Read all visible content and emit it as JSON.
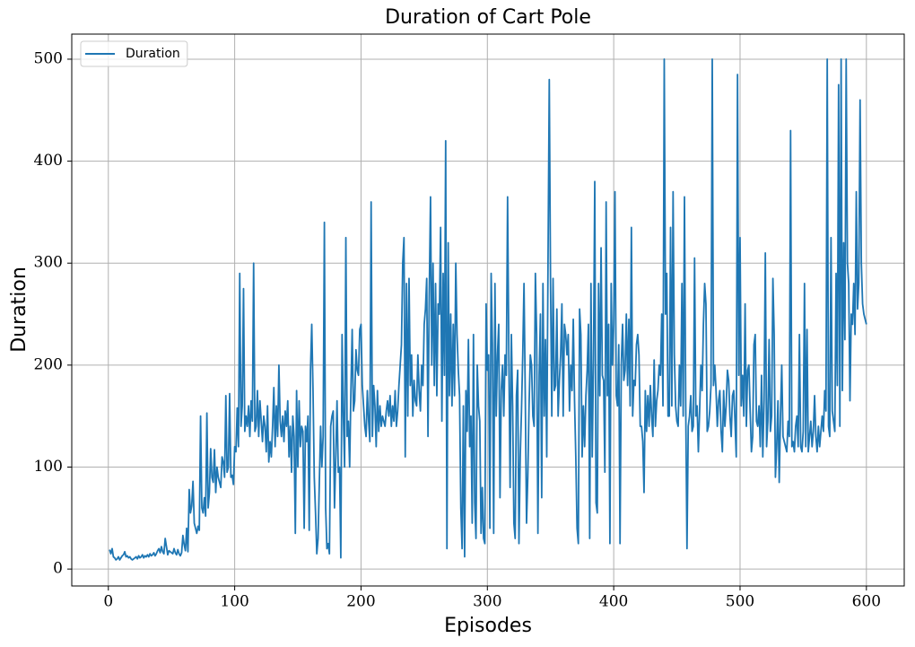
{
  "chart_data": {
    "type": "line",
    "title": "Duration of Cart Pole",
    "x_label": "Episodes",
    "y_label": "Duration",
    "xlim": [
      -28.95,
      629.95
    ],
    "ylim": [
      -16.6,
      524.6
    ],
    "xticks": [
      0,
      100,
      200,
      300,
      400,
      500,
      600
    ],
    "yticks": [
      0,
      100,
      200,
      300,
      400,
      500
    ],
    "grid": true,
    "legend": "upper left",
    "x": [
      1,
      2,
      3,
      4,
      5,
      6,
      7,
      8,
      9,
      10,
      11,
      12,
      13,
      14,
      15,
      16,
      17,
      18,
      19,
      20,
      21,
      22,
      23,
      24,
      25,
      26,
      27,
      28,
      29,
      30,
      31,
      32,
      33,
      34,
      35,
      36,
      37,
      38,
      39,
      40,
      41,
      42,
      43,
      44,
      45,
      46,
      47,
      48,
      49,
      50,
      51,
      52,
      53,
      54,
      55,
      56,
      57,
      58,
      59,
      60,
      61,
      62,
      63,
      64,
      65,
      66,
      67,
      68,
      69,
      70,
      71,
      72,
      73,
      74,
      75,
      76,
      77,
      78,
      79,
      80,
      81,
      82,
      83,
      84,
      85,
      86,
      87,
      88,
      89,
      90,
      91,
      92,
      93,
      94,
      95,
      96,
      97,
      98,
      99,
      100,
      101,
      102,
      103,
      104,
      105,
      106,
      107,
      108,
      109,
      110,
      111,
      112,
      113,
      114,
      115,
      116,
      117,
      118,
      119,
      120,
      121,
      122,
      123,
      124,
      125,
      126,
      127,
      128,
      129,
      130,
      131,
      132,
      133,
      134,
      135,
      136,
      137,
      138,
      139,
      140,
      141,
      142,
      143,
      144,
      145,
      146,
      147,
      148,
      149,
      150,
      151,
      152,
      153,
      154,
      155,
      156,
      157,
      158,
      159,
      160,
      161,
      162,
      163,
      164,
      165,
      166,
      167,
      168,
      169,
      170,
      171,
      172,
      173,
      174,
      175,
      176,
      177,
      178,
      179,
      180,
      181,
      182,
      183,
      184,
      185,
      186,
      187,
      188,
      189,
      190,
      191,
      192,
      193,
      194,
      195,
      196,
      197,
      198,
      199,
      200,
      201,
      202,
      203,
      204,
      205,
      206,
      207,
      208,
      209,
      210,
      211,
      212,
      213,
      214,
      215,
      216,
      217,
      218,
      219,
      220,
      221,
      222,
      223,
      224,
      225,
      226,
      227,
      228,
      229,
      230,
      231,
      232,
      233,
      234,
      235,
      236,
      237,
      238,
      239,
      240,
      241,
      242,
      243,
      244,
      245,
      246,
      247,
      248,
      249,
      250,
      251,
      252,
      253,
      254,
      255,
      256,
      257,
      258,
      259,
      260,
      261,
      262,
      263,
      264,
      265,
      266,
      267,
      268,
      269,
      270,
      271,
      272,
      273,
      274,
      275,
      276,
      277,
      278,
      279,
      280,
      281,
      282,
      283,
      284,
      285,
      286,
      287,
      288,
      289,
      290,
      291,
      292,
      293,
      294,
      295,
      296,
      297,
      298,
      299,
      300,
      301,
      302,
      303,
      304,
      305,
      306,
      307,
      308,
      309,
      310,
      311,
      312,
      313,
      314,
      315,
      316,
      317,
      318,
      319,
      320,
      321,
      322,
      323,
      324,
      325,
      326,
      327,
      328,
      329,
      330,
      331,
      332,
      333,
      334,
      335,
      336,
      337,
      338,
      339,
      340,
      341,
      342,
      343,
      344,
      345,
      346,
      347,
      348,
      349,
      350,
      351,
      352,
      353,
      354,
      355,
      356,
      357,
      358,
      359,
      360,
      361,
      362,
      363,
      364,
      365,
      366,
      367,
      368,
      369,
      370,
      371,
      372,
      373,
      374,
      375,
      376,
      377,
      378,
      379,
      380,
      381,
      382,
      383,
      384,
      385,
      386,
      387,
      388,
      389,
      390,
      391,
      392,
      393,
      394,
      395,
      396,
      397,
      398,
      399,
      400,
      401,
      402,
      403,
      404,
      405,
      406,
      407,
      408,
      409,
      410,
      411,
      412,
      413,
      414,
      415,
      416,
      417,
      418,
      419,
      420,
      421,
      422,
      423,
      424,
      425,
      426,
      427,
      428,
      429,
      430,
      431,
      432,
      433,
      434,
      435,
      436,
      437,
      438,
      439,
      440,
      441,
      442,
      443,
      444,
      445,
      446,
      447,
      448,
      449,
      450,
      451,
      452,
      453,
      454,
      455,
      456,
      457,
      458,
      459,
      460,
      461,
      462,
      463,
      464,
      465,
      466,
      467,
      468,
      469,
      470,
      471,
      472,
      473,
      474,
      475,
      476,
      477,
      478,
      479,
      480,
      481,
      482,
      483,
      484,
      485,
      486,
      487,
      488,
      489,
      490,
      491,
      492,
      493,
      494,
      495,
      496,
      497,
      498,
      499,
      500,
      501,
      502,
      503,
      504,
      505,
      506,
      507,
      508,
      509,
      510,
      511,
      512,
      513,
      514,
      515,
      516,
      517,
      518,
      519,
      520,
      521,
      522,
      523,
      524,
      525,
      526,
      527,
      528,
      529,
      530,
      531,
      532,
      533,
      534,
      535,
      536,
      537,
      538,
      539,
      540,
      541,
      542,
      543,
      544,
      545,
      546,
      547,
      548,
      549,
      550,
      551,
      552,
      553,
      554,
      555,
      556,
      557,
      558,
      559,
      560,
      561,
      562,
      563,
      564,
      565,
      566,
      567,
      568,
      569,
      570,
      571,
      572,
      573,
      574,
      575,
      576,
      577,
      578,
      579,
      580,
      581,
      582,
      583,
      584,
      585,
      586,
      587,
      588,
      589,
      590,
      591,
      592,
      593,
      594,
      595,
      596,
      597,
      598,
      599,
      600
    ],
    "series": [
      {
        "name": "Duration",
        "color": "#1f77b4",
        "values": [
          19,
          15,
          20,
          12,
          11,
          9,
          10,
          12,
          9,
          11,
          13,
          14,
          17,
          12,
          13,
          11,
          12,
          10,
          9,
          10,
          11,
          12,
          10,
          13,
          11,
          12,
          14,
          11,
          13,
          12,
          14,
          12,
          15,
          13,
          14,
          16,
          13,
          15,
          18,
          20,
          16,
          22,
          17,
          15,
          30,
          22,
          14,
          18,
          17,
          16,
          15,
          20,
          16,
          14,
          19,
          15,
          13,
          16,
          33,
          24,
          18,
          40,
          17,
          78,
          55,
          62,
          86,
          45,
          40,
          35,
          42,
          38,
          150,
          60,
          55,
          70,
          52,
          153,
          60,
          75,
          118,
          90,
          85,
          117,
          75,
          100,
          90,
          85,
          80,
          110,
          105,
          90,
          170,
          95,
          100,
          172,
          90,
          92,
          83,
          120,
          115,
          158,
          120,
          290,
          140,
          160,
          275,
          135,
          150,
          140,
          160,
          130,
          165,
          145,
          300,
          135,
          140,
          175,
          130,
          165,
          145,
          125,
          150,
          140,
          115,
          160,
          105,
          125,
          110,
          140,
          178,
          120,
          160,
          130,
          200,
          145,
          130,
          150,
          125,
          155,
          140,
          165,
          110,
          140,
          95,
          150,
          130,
          35,
          175,
          100,
          165,
          120,
          140,
          135,
          40,
          140,
          125,
          150,
          38,
          195,
          240,
          175,
          90,
          55,
          15,
          30,
          85,
          140,
          100,
          130,
          340,
          60,
          20,
          25,
          15,
          140,
          150,
          155,
          60,
          110,
          165,
          95,
          100,
          11,
          230,
          150,
          100,
          325,
          130,
          145,
          100,
          175,
          235,
          155,
          165,
          215,
          195,
          190,
          235,
          240,
          180,
          160,
          140,
          130,
          175,
          145,
          125,
          360,
          130,
          180,
          160,
          120,
          175,
          135,
          160,
          140,
          150,
          145,
          140,
          155,
          165,
          150,
          170,
          140,
          160,
          145,
          175,
          140,
          155,
          180,
          200,
          220,
          300,
          325,
          110,
          280,
          150,
          285,
          180,
          210,
          150,
          185,
          165,
          160,
          210,
          175,
          155,
          200,
          180,
          240,
          255,
          285,
          130,
          270,
          365,
          200,
          300,
          180,
          280,
          170,
          260,
          250,
          335,
          145,
          290,
          190,
          420,
          20,
          320,
          170,
          250,
          160,
          240,
          170,
          300,
          230,
          195,
          170,
          60,
          20,
          160,
          12,
          175,
          135,
          225,
          120,
          150,
          45,
          230,
          65,
          30,
          200,
          160,
          145,
          35,
          80,
          30,
          25,
          260,
          195,
          210,
          40,
          290,
          220,
          35,
          280,
          150,
          210,
          240,
          70,
          175,
          200,
          150,
          210,
          190,
          365,
          210,
          80,
          230,
          160,
          45,
          30,
          170,
          195,
          25,
          110,
          155,
          210,
          280,
          170,
          45,
          90,
          160,
          210,
          200,
          150,
          140,
          290,
          230,
          35,
          190,
          250,
          70,
          280,
          150,
          225,
          110,
          300,
          480,
          280,
          150,
          285,
          175,
          180,
          255,
          150,
          185,
          210,
          260,
          150,
          240,
          230,
          210,
          230,
          155,
          200,
          175,
          245,
          165,
          110,
          40,
          25,
          255,
          230,
          110,
          160,
          120,
          170,
          195,
          240,
          30,
          280,
          110,
          205,
          380,
          65,
          55,
          280,
          170,
          315,
          190,
          185,
          95,
          360,
          170,
          240,
          25,
          280,
          200,
          240,
          370,
          170,
          160,
          220,
          25,
          200,
          240,
          185,
          195,
          250,
          180,
          245,
          160,
          335,
          150,
          185,
          180,
          220,
          230,
          210,
          140,
          140,
          125,
          75,
          175,
          135,
          170,
          140,
          180,
          150,
          130,
          205,
          140,
          165,
          175,
          200,
          190,
          250,
          160,
          500,
          250,
          290,
          150,
          150,
          335,
          160,
          370,
          210,
          160,
          145,
          140,
          200,
          160,
          280,
          150,
          365,
          160,
          20,
          140,
          150,
          170,
          135,
          140,
          305,
          150,
          160,
          115,
          155,
          200,
          175,
          240,
          280,
          260,
          135,
          140,
          155,
          180,
          500,
          180,
          200,
          175,
          140,
          165,
          175,
          135,
          115,
          175,
          140,
          160,
          195,
          185,
          150,
          130,
          170,
          175,
          145,
          110,
          485,
          190,
          325,
          160,
          190,
          150,
          260,
          140,
          195,
          200,
          155,
          115,
          130,
          220,
          230,
          145,
          140,
          160,
          120,
          190,
          110,
          165,
          310,
          120,
          145,
          225,
          135,
          150,
          285,
          230,
          90,
          120,
          165,
          85,
          150,
          200,
          130,
          125,
          120,
          115,
          145,
          130,
          430,
          120,
          125,
          115,
          140,
          150,
          120,
          230,
          120,
          115,
          135,
          280,
          120,
          235,
          115,
          130,
          145,
          120,
          135,
          170,
          130,
          115,
          140,
          120,
          135,
          150,
          135,
          175,
          155,
          500,
          140,
          130,
          325,
          155,
          145,
          135,
          290,
          180,
          475,
          140,
          500,
          175,
          320,
          225,
          500,
          300,
          280,
          165,
          250,
          240,
          280,
          230,
          370,
          255,
          280,
          460,
          300,
          260,
          250,
          245,
          240
        ]
      }
    ]
  }
}
